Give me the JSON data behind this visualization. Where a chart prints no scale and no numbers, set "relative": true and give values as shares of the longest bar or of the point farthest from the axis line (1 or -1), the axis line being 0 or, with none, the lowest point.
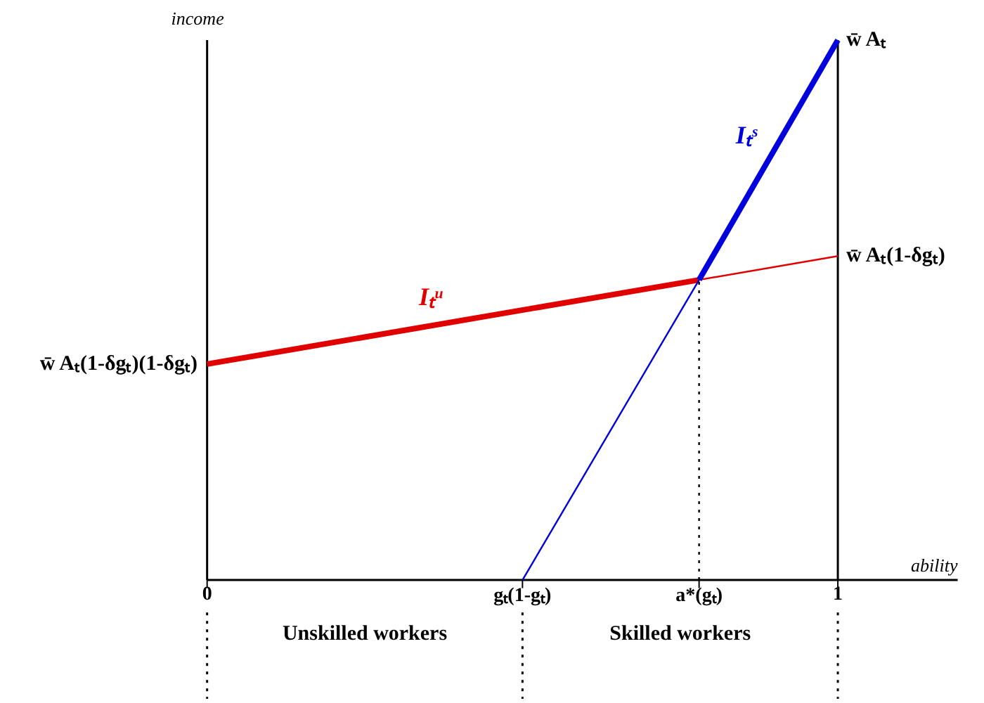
{
  "chart_data": {
    "type": "line",
    "relative": true,
    "xlabel": "ability",
    "ylabel": "income",
    "xlim": [
      0,
      1.19
    ],
    "xticks": [
      0,
      {
        "value": 0.5,
        "label": "gₜ(1-gₜ)"
      },
      {
        "value": 0.78,
        "label": "a*(gₜ)"
      },
      1
    ],
    "series": [
      {
        "name": "Iₜᵘ",
        "color": "#e00000",
        "x": [
          0,
          0.78
        ],
        "values": [
          0.4,
          0.556
        ]
      },
      {
        "color": "#e00000",
        "x": [
          0.78,
          1
        ],
        "values": [
          0.556,
          0.6
        ]
      },
      {
        "color": "#0000dd",
        "x": [
          0.5,
          0.78
        ],
        "values": [
          0,
          0.556
        ]
      },
      {
        "name": "Iₜˢ",
        "color": "#0000dd",
        "x": [
          0.78,
          1
        ],
        "values": [
          0.556,
          1
        ]
      },
      {
        "color": "#000000",
        "line_style": "dotted",
        "x": [
          0.78,
          0.78
        ],
        "values": [
          0,
          0.556
        ]
      }
    ],
    "ref_lines": [
      {
        "axis": "x",
        "value": 1,
        "color": "#000000"
      }
    ],
    "annotations": [
      "Unskilled workers",
      "Skilled workers",
      "w̄ Aₜ(1-δgₜ)(1-δgₜ)",
      {
        "text": "w̄ Aₜ(1-δgₜ)",
        "x": 1,
        "y": 0.6
      },
      {
        "text": "w̄ Aₜ",
        "x": 1,
        "y": 1
      }
    ]
  }
}
